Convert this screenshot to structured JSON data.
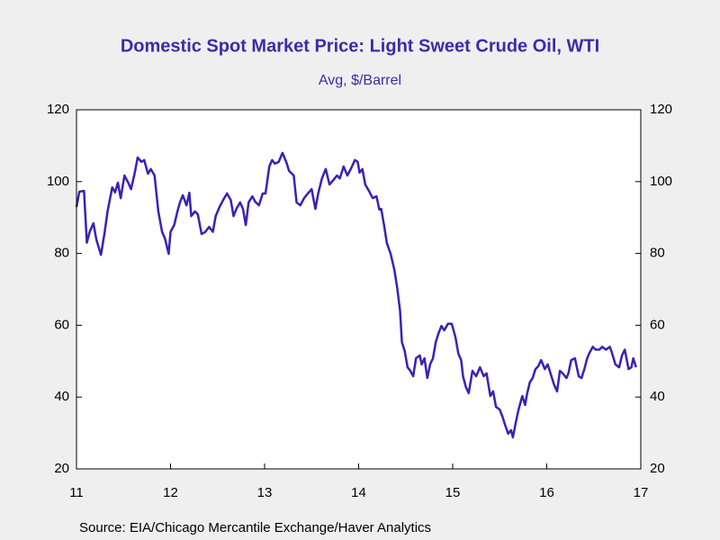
{
  "chart_data": {
    "type": "line",
    "title": "Domestic Spot Market Price: Light Sweet Crude Oil, WTI",
    "subtitle": "Avg, $/Barrel",
    "source": "Source:  EIA/Chicago Mercantile Exchange/Haver Analytics",
    "xlim": [
      11,
      17
    ],
    "xticks": [
      11,
      12,
      13,
      14,
      15,
      16,
      17
    ],
    "ylim": [
      20,
      120
    ],
    "yticks": [
      20,
      40,
      60,
      80,
      100,
      120
    ],
    "y2lim": [
      20,
      120
    ],
    "y2ticks": [
      20,
      40,
      60,
      80,
      100,
      120
    ],
    "grid": false,
    "series": [
      {
        "name": "WTI",
        "color": "#3c20b4",
        "x": [
          11.0,
          11.03,
          11.08,
          11.11,
          11.14,
          11.18,
          11.21,
          11.26,
          11.3,
          11.33,
          11.38,
          11.41,
          11.44,
          11.47,
          11.51,
          11.55,
          11.58,
          11.62,
          11.65,
          11.69,
          11.72,
          11.76,
          11.79,
          11.83,
          11.87,
          11.91,
          11.94,
          11.98,
          12.0,
          12.04,
          12.07,
          12.1,
          12.13,
          12.17,
          12.2,
          12.22,
          12.26,
          12.29,
          12.33,
          12.37,
          12.41,
          12.45,
          12.48,
          12.52,
          12.56,
          12.6,
          12.64,
          12.67,
          12.7,
          12.74,
          12.77,
          12.8,
          12.83,
          12.87,
          12.9,
          12.94,
          12.98,
          13.01,
          13.05,
          13.08,
          13.11,
          13.15,
          13.19,
          13.23,
          13.26,
          13.31,
          13.34,
          13.38,
          13.42,
          13.46,
          13.5,
          13.54,
          13.57,
          13.61,
          13.65,
          13.69,
          13.73,
          13.77,
          13.8,
          13.84,
          13.88,
          13.92,
          13.96,
          13.99,
          14.01,
          14.04,
          14.07,
          14.11,
          14.15,
          14.19,
          14.22,
          14.24,
          14.27,
          14.3,
          14.34,
          14.38,
          14.41,
          14.44,
          14.46,
          14.49,
          14.52,
          14.55,
          14.58,
          14.61,
          14.65,
          14.67,
          14.7,
          14.73,
          14.76,
          14.79,
          14.82,
          14.85,
          14.88,
          14.91,
          14.95,
          14.99,
          15.03,
          15.06,
          15.09,
          15.11,
          15.14,
          15.17,
          15.21,
          15.25,
          15.29,
          15.33,
          15.36,
          15.4,
          15.43,
          15.46,
          15.5,
          15.53,
          15.56,
          15.59,
          15.62,
          15.64,
          15.67,
          15.7,
          15.74,
          15.77,
          15.79,
          15.82,
          15.85,
          15.88,
          15.91,
          15.94,
          15.98,
          16.01,
          16.04,
          16.08,
          16.11,
          16.14,
          16.17,
          16.21,
          16.23,
          16.26,
          16.3,
          16.34,
          16.37,
          16.4,
          16.43,
          16.45,
          16.49,
          16.52,
          16.56,
          16.59,
          16.63,
          16.67,
          16.69,
          16.73,
          16.77,
          16.8,
          16.83,
          16.87,
          16.9,
          16.92,
          16.95
        ],
        "values": [
          92.9,
          97.2,
          97.4,
          83,
          86,
          88.4,
          84,
          79.6,
          86,
          91.7,
          98.4,
          97,
          99.7,
          95.4,
          101.7,
          99.7,
          97.9,
          102.5,
          106.7,
          105.5,
          106,
          102.2,
          103.5,
          101.7,
          91.7,
          86,
          84.2,
          79.9,
          86,
          88,
          91.4,
          94.2,
          96.2,
          93.4,
          96.9,
          90.4,
          91.7,
          90.9,
          85.4,
          86,
          87.4,
          86,
          90.4,
          92.9,
          94.9,
          96.7,
          94.9,
          90.4,
          92.4,
          94.2,
          92.4,
          87.9,
          94.2,
          95.9,
          94.4,
          93.4,
          96.7,
          96.7,
          104.2,
          106,
          105,
          105.5,
          108,
          105.5,
          103,
          101.7,
          94.2,
          93.4,
          95.4,
          96.7,
          97.9,
          92.4,
          96.7,
          100.9,
          103.5,
          99.2,
          100.4,
          101.7,
          100.9,
          104.2,
          101.7,
          103.7,
          106,
          105.5,
          102.5,
          103.5,
          99.2,
          97.4,
          95.4,
          95.9,
          92.2,
          92.4,
          87.9,
          82.9,
          79.9,
          75.4,
          70.4,
          64.1,
          55.3,
          52.8,
          48.3,
          47.3,
          45.8,
          50.8,
          51.6,
          49.1,
          50.8,
          45.3,
          49.1,
          50.8,
          55.3,
          57.8,
          59.8,
          58.6,
          60.4,
          60.4,
          56.6,
          52.1,
          50.3,
          45.8,
          42.8,
          41.1,
          47.3,
          45.8,
          48.3,
          45.8,
          46.6,
          40.3,
          41.6,
          37.3,
          36.5,
          34.5,
          32,
          29.8,
          30.8,
          28.8,
          32.8,
          36.5,
          40.3,
          37.8,
          40.8,
          44.1,
          45.3,
          47.8,
          48.6,
          50.3,
          47.8,
          49.1,
          46.6,
          43.3,
          41.6,
          47.3,
          46.6,
          45.3,
          46.6,
          50.3,
          50.8,
          45.8,
          45.3,
          47.8,
          50.8,
          52.1,
          54,
          53.2,
          53.2,
          54,
          53.2,
          54,
          52.6,
          49.1,
          48.3,
          51.6,
          53.2,
          47.8,
          48.3,
          50.8,
          48.3
        ]
      }
    ]
  }
}
